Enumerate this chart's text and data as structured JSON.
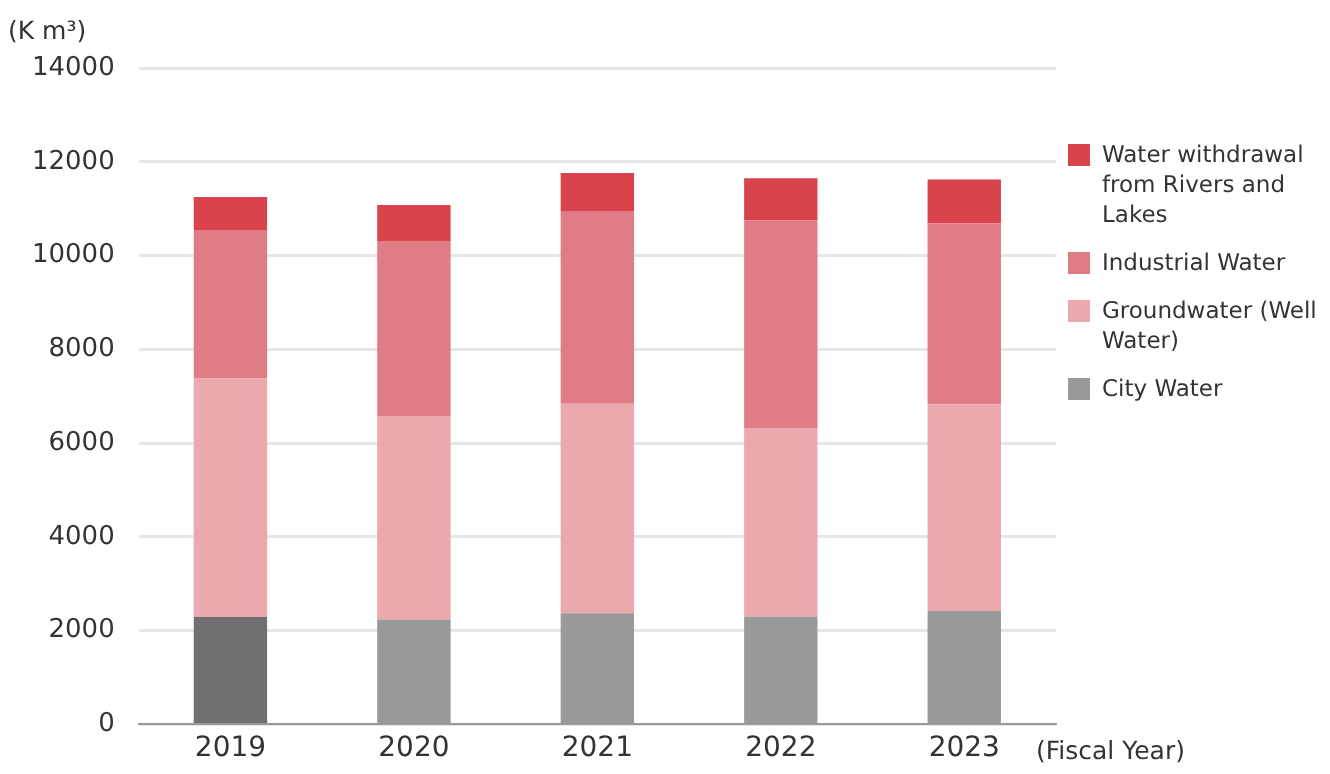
{
  "chart_data": {
    "type": "bar",
    "stacked": true,
    "ylabel": "(K m³)",
    "xlabel": "(Fiscal Year)",
    "categories": [
      "2019",
      "2020",
      "2021",
      "2022",
      "2023"
    ],
    "series": [
      {
        "name": "City Water",
        "color": "#999999",
        "colors": [
          "#707070",
          "#999999",
          "#999999",
          "#999999",
          "#999999"
        ],
        "values": [
          2290,
          2240,
          2370,
          2300,
          2420
        ]
      },
      {
        "name": "Groundwater (Well Water)",
        "color": "#eba8ad",
        "values": [
          5090,
          4340,
          4470,
          4020,
          4410
        ]
      },
      {
        "name": "Industrial Water",
        "color": "#e07c85",
        "values": [
          3150,
          3730,
          4110,
          4430,
          3860
        ]
      },
      {
        "name": "Water withdrawal from Rivers and Lakes",
        "color": "#d9444c",
        "values": [
          720,
          770,
          810,
          900,
          930
        ]
      }
    ],
    "ylim": [
      0,
      14000
    ],
    "yticks": [
      0,
      2000,
      4000,
      6000,
      8000,
      10000,
      12000,
      14000
    ],
    "grid": "y",
    "legend": "right"
  }
}
